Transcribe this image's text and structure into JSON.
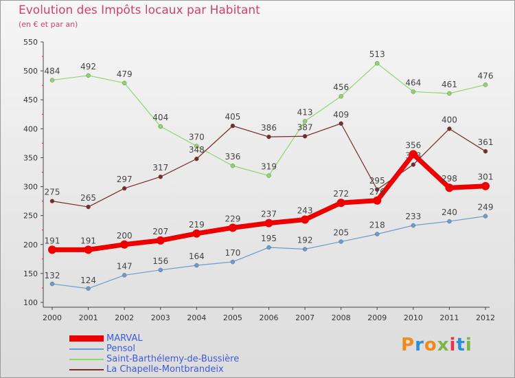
{
  "header": {
    "title": "Evolution des Impôts locaux par Habitant",
    "subtitle": "(en € et par an)"
  },
  "logo": {
    "text": "Proxiti"
  },
  "colors": {
    "title": "#d13f72",
    "axis": "#444444",
    "legend_text": "#3b5bdb",
    "logo": [
      "#f08a1c",
      "#2a8fd6",
      "#f08a1c",
      "#7ab648",
      "#e8344a",
      "#2a8fd6",
      "#7ab648"
    ]
  },
  "chart_data": {
    "type": "line",
    "title": "Evolution des Impôts locaux par Habitant",
    "subtitle": "(en € et par an)",
    "xlabel": "",
    "ylabel": "",
    "ylim": [
      100,
      550
    ],
    "yticks": [
      100,
      150,
      200,
      250,
      300,
      350,
      400,
      450,
      500,
      550
    ],
    "grid": false,
    "legend_position": "bottom-left",
    "categories": [
      "2000",
      "2001",
      "2002",
      "2003",
      "2004",
      "2005",
      "2006",
      "2007",
      "2008",
      "2009",
      "2010",
      "2011",
      "2012"
    ],
    "series": [
      {
        "name": "MARVAL",
        "color": "#ee0000",
        "thick": true,
        "values": [
          191,
          191,
          200,
          207,
          219,
          229,
          237,
          243,
          272,
          276,
          356,
          298,
          301
        ],
        "labels": [
          "191",
          "191",
          "200",
          "207",
          "219",
          "229",
          "237",
          "243",
          "272",
          "276",
          "356",
          "298",
          "301"
        ]
      },
      {
        "name": "Pensol",
        "color": "#6a9bd1",
        "thick": false,
        "values": [
          132,
          124,
          147,
          156,
          164,
          170,
          195,
          192,
          205,
          218,
          233,
          240,
          249
        ],
        "labels": [
          "132",
          "124",
          "147",
          "156",
          "164",
          "170",
          "195",
          "192",
          "205",
          "218",
          "233",
          "240",
          "249"
        ]
      },
      {
        "name": "Saint-Barthélemy-de-Bussière",
        "color": "#8fd66a",
        "thick": false,
        "values": [
          484,
          492,
          479,
          404,
          370,
          336,
          319,
          413,
          456,
          513,
          464,
          461,
          476
        ],
        "labels": [
          "484",
          "492",
          "479",
          "404",
          "370",
          "336",
          "319",
          "413",
          "456",
          "513",
          "464",
          "461",
          "476"
        ]
      },
      {
        "name": "La Chapelle-Montbrandeix",
        "color": "#7a2a2a",
        "thick": false,
        "values": [
          275,
          265,
          297,
          317,
          348,
          405,
          386,
          387,
          409,
          295,
          338,
          400,
          361
        ],
        "labels": [
          "275",
          "265",
          "297",
          "317",
          "348",
          "405",
          "386",
          "387",
          "409",
          "295",
          "338",
          "400",
          "361"
        ]
      }
    ]
  }
}
